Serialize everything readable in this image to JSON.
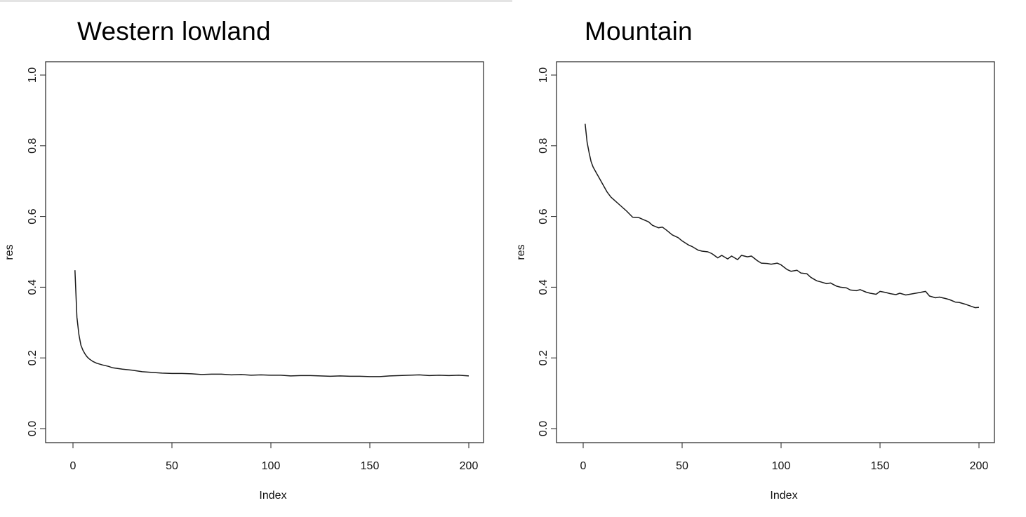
{
  "chart_data": [
    {
      "type": "line",
      "title": "Western lowland",
      "xlabel": "Index",
      "ylabel": "res",
      "xlim": [
        0,
        200
      ],
      "ylim": [
        0.0,
        1.0
      ],
      "xticks": [
        0,
        50,
        100,
        150,
        200
      ],
      "yticks": [
        0.0,
        0.2,
        0.4,
        0.6,
        0.8,
        1.0
      ],
      "xtick_labels": [
        "0",
        "50",
        "100",
        "150",
        "200"
      ],
      "ytick_labels": [
        "0.0",
        "0.2",
        "0.4",
        "0.6",
        "0.8",
        "1.0"
      ],
      "grid": false,
      "series": [
        {
          "x": [
            1,
            2,
            3,
            4,
            5,
            6,
            7,
            8,
            10,
            12,
            15,
            18,
            20,
            25,
            30,
            35,
            40,
            45,
            50,
            55,
            60,
            65,
            70,
            75,
            80,
            85,
            90,
            95,
            100,
            105,
            110,
            115,
            120,
            125,
            130,
            135,
            140,
            145,
            150,
            155,
            160,
            165,
            170,
            175,
            180,
            185,
            190,
            195,
            200
          ],
          "y": [
            0.448,
            0.315,
            0.265,
            0.236,
            0.222,
            0.212,
            0.204,
            0.198,
            0.19,
            0.185,
            0.18,
            0.176,
            0.172,
            0.168,
            0.165,
            0.161,
            0.159,
            0.157,
            0.156,
            0.156,
            0.155,
            0.153,
            0.154,
            0.154,
            0.152,
            0.153,
            0.151,
            0.152,
            0.151,
            0.151,
            0.149,
            0.15,
            0.15,
            0.149,
            0.148,
            0.149,
            0.148,
            0.148,
            0.147,
            0.147,
            0.149,
            0.15,
            0.151,
            0.152,
            0.15,
            0.151,
            0.15,
            0.151,
            0.149
          ]
        }
      ],
      "color": "#1a1a1a"
    },
    {
      "type": "line",
      "title": "Mountain",
      "xlabel": "Index",
      "ylabel": "res",
      "xlim": [
        0,
        200
      ],
      "ylim": [
        0.0,
        1.0
      ],
      "xticks": [
        0,
        50,
        100,
        150,
        200
      ],
      "yticks": [
        0.0,
        0.2,
        0.4,
        0.6,
        0.8,
        1.0
      ],
      "xtick_labels": [
        "0",
        "50",
        "100",
        "150",
        "200"
      ],
      "ytick_labels": [
        "0.0",
        "0.2",
        "0.4",
        "0.6",
        "0.8",
        "1.0"
      ],
      "grid": false,
      "series": [
        {
          "x": [
            1,
            2,
            3,
            4,
            5,
            6,
            7,
            8,
            9,
            10,
            12,
            14,
            16,
            18,
            20,
            22,
            25,
            28,
            30,
            33,
            35,
            38,
            40,
            42,
            45,
            48,
            50,
            53,
            55,
            58,
            60,
            63,
            65,
            68,
            70,
            73,
            75,
            78,
            80,
            83,
            85,
            88,
            90,
            93,
            95,
            98,
            100,
            103,
            105,
            108,
            110,
            113,
            115,
            118,
            120,
            123,
            125,
            128,
            130,
            133,
            135,
            138,
            140,
            143,
            145,
            148,
            150,
            153,
            155,
            158,
            160,
            163,
            165,
            168,
            170,
            173,
            175,
            178,
            180,
            183,
            185,
            188,
            190,
            193,
            195,
            198,
            200
          ],
          "y": [
            0.862,
            0.81,
            0.78,
            0.755,
            0.74,
            0.73,
            0.72,
            0.71,
            0.7,
            0.69,
            0.67,
            0.655,
            0.645,
            0.635,
            0.625,
            0.615,
            0.598,
            0.597,
            0.592,
            0.585,
            0.575,
            0.568,
            0.57,
            0.562,
            0.548,
            0.54,
            0.531,
            0.52,
            0.515,
            0.505,
            0.502,
            0.5,
            0.495,
            0.483,
            0.49,
            0.48,
            0.488,
            0.478,
            0.49,
            0.486,
            0.488,
            0.475,
            0.468,
            0.467,
            0.465,
            0.468,
            0.463,
            0.45,
            0.445,
            0.448,
            0.44,
            0.438,
            0.428,
            0.418,
            0.415,
            0.41,
            0.412,
            0.403,
            0.4,
            0.398,
            0.392,
            0.39,
            0.393,
            0.386,
            0.383,
            0.38,
            0.388,
            0.385,
            0.382,
            0.379,
            0.383,
            0.378,
            0.38,
            0.383,
            0.385,
            0.388,
            0.375,
            0.37,
            0.372,
            0.368,
            0.365,
            0.358,
            0.357,
            0.352,
            0.348,
            0.342,
            0.343
          ]
        }
      ],
      "color": "#1a1a1a"
    }
  ]
}
